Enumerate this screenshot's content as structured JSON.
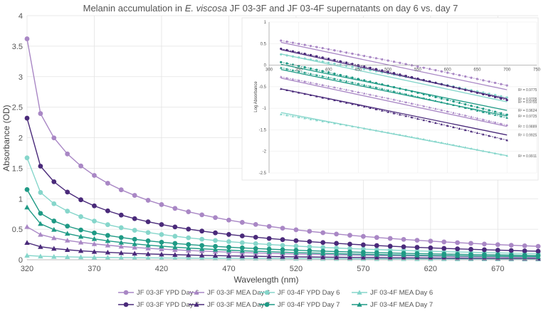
{
  "chart_data": [
    {
      "type": "line",
      "title_parts": [
        "Melanin accumulation in ",
        "E. viscosa",
        " JF 03-3F and JF 03-4F supernatants on day 6 vs. day 7"
      ],
      "xlabel": "Wavelength (nm)",
      "ylabel": "Absorbance (OD)",
      "xlim": [
        320,
        700
      ],
      "ylim": [
        0,
        4
      ],
      "xticks": [
        "320",
        "370",
        "420",
        "470",
        "520",
        "570",
        "620",
        "670"
      ],
      "yticks": [
        "0",
        "0.5",
        "1",
        "1.5",
        "2",
        "2.5",
        "3",
        "3.5",
        "4"
      ],
      "x": [
        320,
        330,
        340,
        350,
        360,
        370,
        380,
        390,
        400,
        410,
        420,
        430,
        440,
        450,
        460,
        470,
        480,
        490,
        500,
        510,
        520,
        530,
        540,
        550,
        560,
        570,
        580,
        590,
        600,
        610,
        620,
        630,
        640,
        650,
        660,
        670,
        680,
        690,
        700
      ],
      "series": [
        {
          "name": "JF 03-3F YPD Day 6",
          "color": "#a987c5",
          "marker": "circle",
          "start": 3.62,
          "end": 0.22,
          "curve": 1.9
        },
        {
          "name": "JF 03-3F MEA Day 6",
          "color": "#a987c5",
          "marker": "triangle",
          "start": 0.54,
          "end": 0.04,
          "curve": 1.6
        },
        {
          "name": "JF 03-4F YPD Day 6",
          "color": "#86d6cb",
          "marker": "circle",
          "start": 1.67,
          "end": 0.1,
          "curve": 1.9
        },
        {
          "name": "JF 03-4F MEA Day 6",
          "color": "#86d6cb",
          "marker": "triangle",
          "start": 0.07,
          "end": 0.01,
          "curve": 1.6
        },
        {
          "name": "JF 03-3F YPD Day 7",
          "color": "#4a2a7a",
          "marker": "circle",
          "start": 2.32,
          "end": 0.14,
          "curve": 1.9
        },
        {
          "name": "JF 03-3F MEA Day 7",
          "color": "#4a2a7a",
          "marker": "triangle",
          "start": 0.28,
          "end": 0.02,
          "curve": 1.6
        },
        {
          "name": "JF 03-4F YPD Day 7",
          "color": "#1f9a85",
          "marker": "circle",
          "start": 1.15,
          "end": 0.07,
          "curve": 1.9
        },
        {
          "name": "JF 03-4F MEA Day 7",
          "color": "#1f9a85",
          "marker": "triangle",
          "start": 0.86,
          "end": 0.05,
          "curve": 1.8
        }
      ]
    },
    {
      "type": "scatter",
      "title": "",
      "xlabel": "",
      "ylabel": "Log Absorbance",
      "xlim": [
        300,
        750
      ],
      "ylim": [
        -2.5,
        1
      ],
      "xticks": [
        "300",
        "350",
        "400",
        "450",
        "500",
        "550",
        "600",
        "650",
        "700",
        "750"
      ],
      "yticks": [
        "1",
        "0.5",
        "0",
        "-0.5",
        "-1",
        "-1.5",
        "-2",
        "-2.5"
      ],
      "x": [
        320,
        330,
        340,
        350,
        360,
        370,
        380,
        390,
        400,
        410,
        420,
        430,
        440,
        450,
        460,
        470,
        480,
        490,
        500,
        510,
        520,
        530,
        540,
        550,
        560,
        570,
        580,
        590,
        600,
        610,
        620,
        630,
        640,
        650,
        660,
        670,
        680,
        690,
        700
      ],
      "series": [
        {
          "color": "#a987c5",
          "marker": "circle",
          "start": 0.57,
          "end": -0.47,
          "fit_start": 0.53,
          "fit_end": -0.57,
          "r2": "R² = 0.9775"
        },
        {
          "color": "#86d6cb",
          "marker": "circle",
          "start": 0.25,
          "end": -0.75,
          "fit_start": 0.26,
          "fit_end": -0.85,
          "r2": "R² = 0.9755"
        },
        {
          "color": "#4a2a7a",
          "marker": "circle",
          "start": 0.38,
          "end": -0.81,
          "fit_start": 0.36,
          "fit_end": -0.78,
          "r2": "R² = 0.9705"
        },
        {
          "color": "#1f9a85",
          "marker": "circle",
          "start": 0.07,
          "end": -1.15,
          "fit_start": 0.02,
          "fit_end": -1.05,
          "r2": "R² = 0.9624"
        },
        {
          "color": "#1f9a85",
          "marker": "triangle",
          "start": -0.06,
          "end": -1.22,
          "fit_start": -0.1,
          "fit_end": -1.18,
          "r2": "R² = 0.9725"
        },
        {
          "color": "#a987c5",
          "marker": "triangle",
          "start": -0.27,
          "end": -1.39,
          "fit_start": -0.3,
          "fit_end": -1.42,
          "r2": "R² = 0.9889"
        },
        {
          "color": "#4a2a7a",
          "marker": "triangle",
          "start": -0.55,
          "end": -1.74,
          "fit_start": -0.55,
          "fit_end": -1.62,
          "r2": "R² = 0.9925"
        },
        {
          "color": "#86d6cb",
          "marker": "triangle",
          "start": -1.14,
          "end": -2.1,
          "fit_start": -1.1,
          "fit_end": -2.1,
          "r2": "R² = 0.9911"
        }
      ]
    }
  ]
}
